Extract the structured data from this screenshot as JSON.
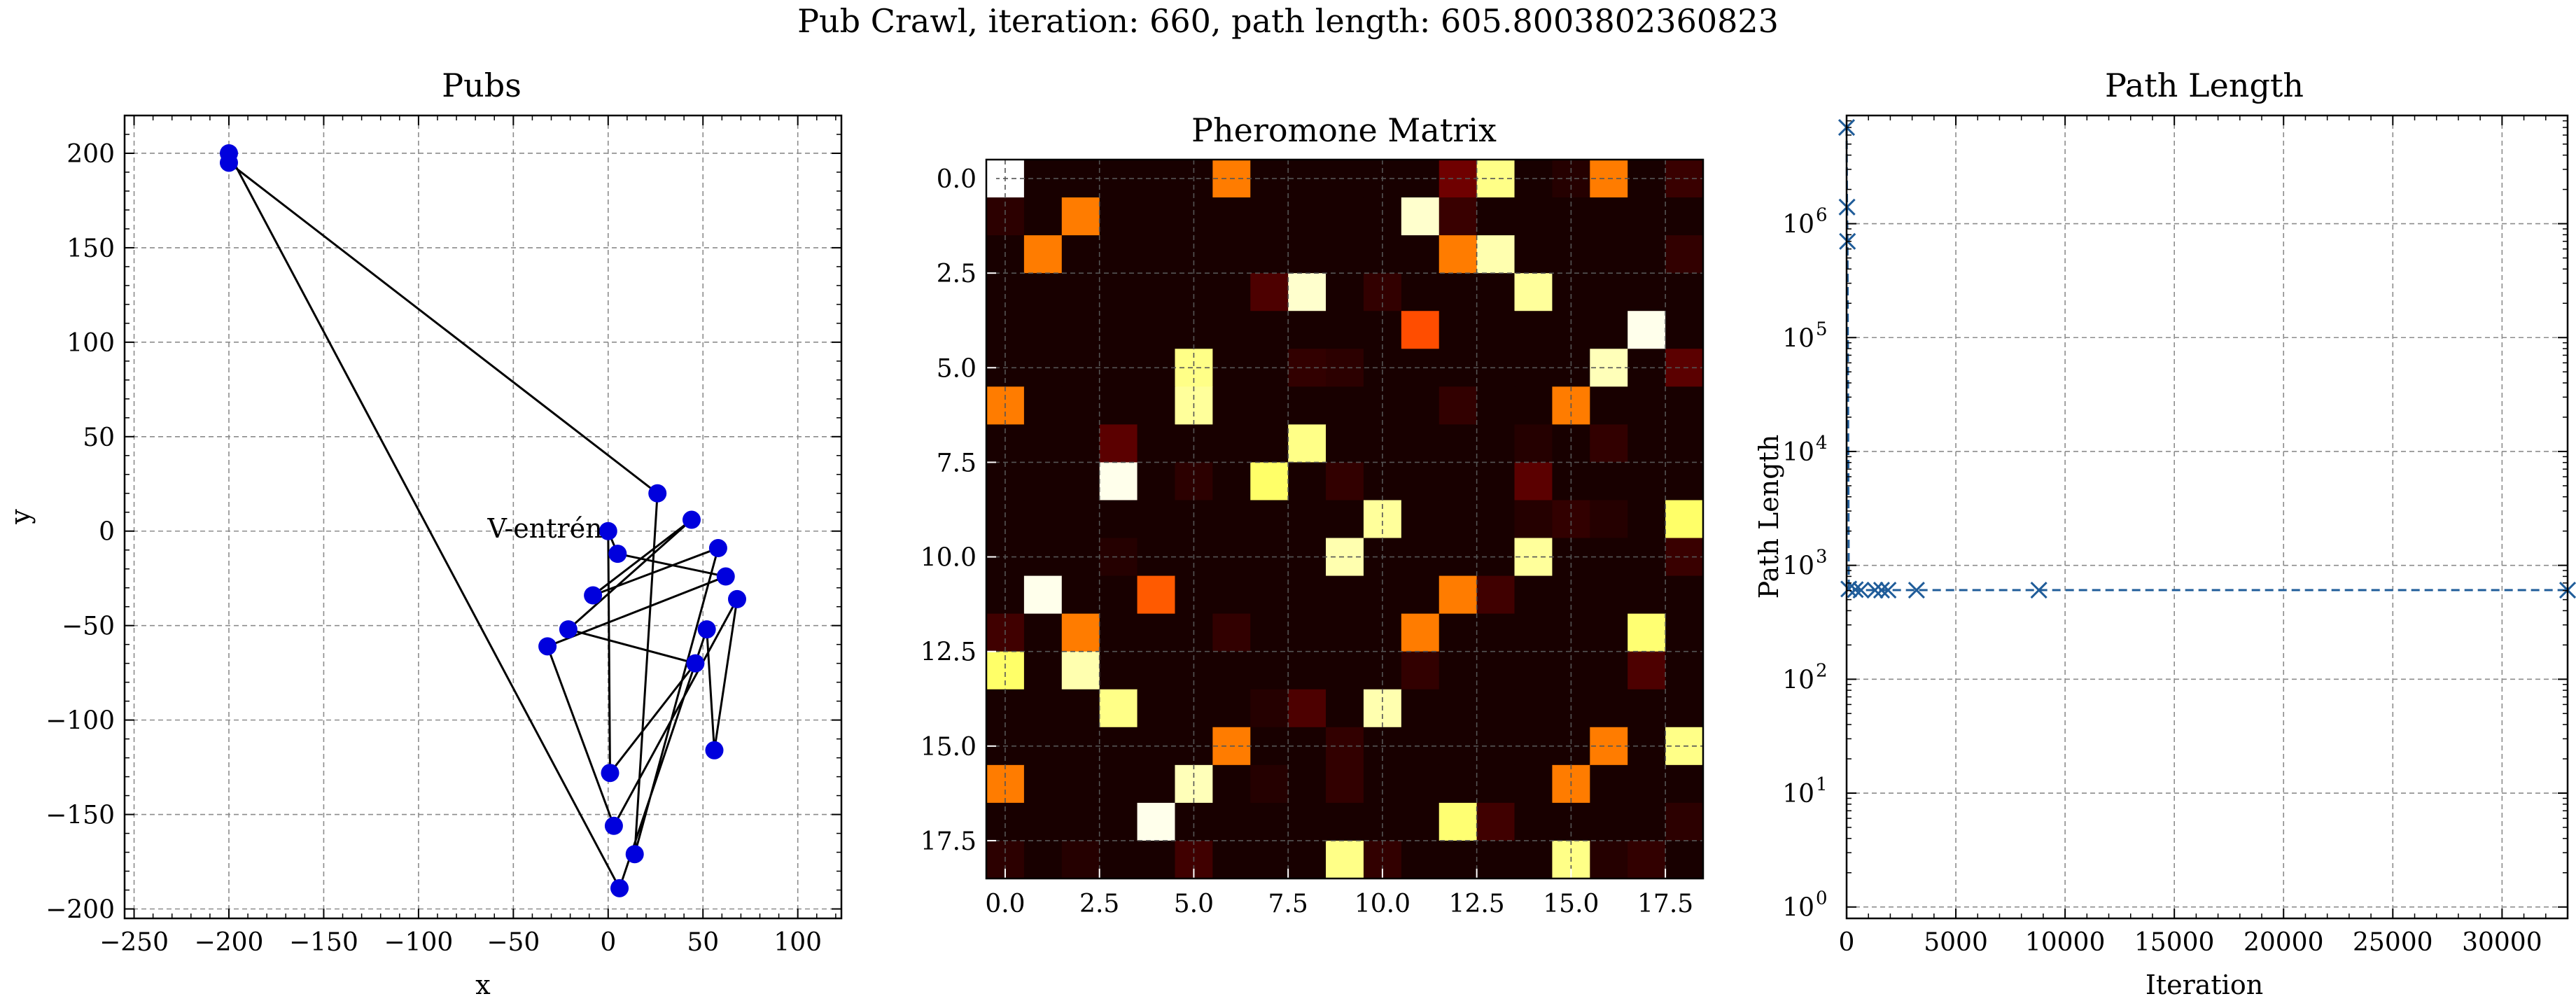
{
  "figure": {
    "suptitle": "Pub Crawl, iteration: 660, path length: 605.8003802360823"
  },
  "chart_data": [
    {
      "type": "scatter",
      "title": "Pubs",
      "xlabel": "x",
      "ylabel": "y",
      "xlim": [
        -255,
        123
      ],
      "ylim": [
        -205,
        220
      ],
      "xticks": [
        -250,
        -200,
        -150,
        -100,
        -50,
        0,
        50,
        100
      ],
      "yticks": [
        200,
        150,
        100,
        50,
        0,
        -50,
        -100,
        -150,
        -200
      ],
      "xtick_labels": [
        "−250",
        "−200",
        "−150",
        "−100",
        "−50",
        "0",
        "50",
        "100"
      ],
      "ytick_labels": [
        "200",
        "150",
        "100",
        "50",
        "0",
        "−50",
        "−100",
        "−150",
        "−200"
      ],
      "grid": true,
      "point_color": "#0000dd",
      "points": [
        {
          "x": -200,
          "y": 200
        },
        {
          "x": -200,
          "y": 195
        },
        {
          "x": 26,
          "y": 20
        },
        {
          "x": 44,
          "y": 6
        },
        {
          "x": 0,
          "y": 0
        },
        {
          "x": 5,
          "y": -12
        },
        {
          "x": 58,
          "y": -9
        },
        {
          "x": 62,
          "y": -24
        },
        {
          "x": 68,
          "y": -36
        },
        {
          "x": -8,
          "y": -34
        },
        {
          "x": -21,
          "y": -52
        },
        {
          "x": -32,
          "y": -61
        },
        {
          "x": 52,
          "y": -52
        },
        {
          "x": 46,
          "y": -70
        },
        {
          "x": 56,
          "y": -116
        },
        {
          "x": 1,
          "y": -128
        },
        {
          "x": 3,
          "y": -156
        },
        {
          "x": 14,
          "y": -171
        },
        {
          "x": 6,
          "y": -189
        }
      ],
      "path": [
        1,
        2,
        17,
        6,
        9,
        3,
        10,
        13,
        15,
        4,
        5,
        7,
        11,
        16,
        8,
        14,
        12,
        18,
        0
      ],
      "annotation": {
        "text": "V-entrén",
        "x": -3,
        "y": 1
      }
    },
    {
      "type": "heatmap",
      "title": "Pheromone Matrix",
      "xticks": [
        0,
        2.5,
        5,
        7.5,
        10,
        12.5,
        15,
        17.5
      ],
      "yticks": [
        0,
        2.5,
        5,
        7.5,
        10,
        12.5,
        15,
        17.5
      ],
      "xtick_labels": [
        "0.0",
        "2.5",
        "5.0",
        "7.5",
        "10.0",
        "12.5",
        "15.0",
        "17.5"
      ],
      "ytick_labels": [
        "0.0",
        "2.5",
        "5.0",
        "7.5",
        "10.0",
        "12.5",
        "15.0",
        "17.5"
      ],
      "size": 19,
      "colormap": "hot",
      "matrix": [
        [
          1.0,
          0.02,
          0.02,
          0.02,
          0.02,
          0.02,
          0.55,
          0.02,
          0.02,
          0.02,
          0.02,
          0.02,
          0.15,
          0.88,
          0.02,
          0.04,
          0.55,
          0.02,
          0.07
        ],
        [
          0.05,
          0.02,
          0.55,
          0.02,
          0.02,
          0.02,
          0.02,
          0.02,
          0.02,
          0.02,
          0.02,
          0.95,
          0.07,
          0.02,
          0.02,
          0.02,
          0.02,
          0.02,
          0.02
        ],
        [
          0.02,
          0.55,
          0.02,
          0.02,
          0.02,
          0.02,
          0.02,
          0.02,
          0.02,
          0.02,
          0.02,
          0.02,
          0.55,
          0.92,
          0.02,
          0.02,
          0.02,
          0.02,
          0.06
        ],
        [
          0.02,
          0.02,
          0.02,
          0.02,
          0.02,
          0.02,
          0.02,
          0.1,
          0.95,
          0.02,
          0.06,
          0.02,
          0.02,
          0.02,
          0.9,
          0.02,
          0.02,
          0.02,
          0.02
        ],
        [
          0.02,
          0.02,
          0.02,
          0.02,
          0.02,
          0.02,
          0.02,
          0.02,
          0.02,
          0.02,
          0.02,
          0.48,
          0.02,
          0.02,
          0.02,
          0.02,
          0.02,
          0.98,
          0.02
        ],
        [
          0.02,
          0.02,
          0.02,
          0.02,
          0.02,
          0.88,
          0.02,
          0.02,
          0.06,
          0.05,
          0.02,
          0.02,
          0.02,
          0.02,
          0.02,
          0.02,
          0.93,
          0.02,
          0.12
        ],
        [
          0.55,
          0.02,
          0.02,
          0.02,
          0.02,
          0.9,
          0.02,
          0.02,
          0.02,
          0.02,
          0.02,
          0.02,
          0.06,
          0.02,
          0.02,
          0.55,
          0.02,
          0.02,
          0.02
        ],
        [
          0.02,
          0.02,
          0.02,
          0.12,
          0.02,
          0.02,
          0.02,
          0.02,
          0.88,
          0.02,
          0.02,
          0.02,
          0.02,
          0.02,
          0.04,
          0.02,
          0.06,
          0.02,
          0.02
        ],
        [
          0.02,
          0.02,
          0.02,
          0.98,
          0.02,
          0.05,
          0.02,
          0.85,
          0.02,
          0.06,
          0.02,
          0.02,
          0.02,
          0.02,
          0.12,
          0.02,
          0.02,
          0.02,
          0.02
        ],
        [
          0.02,
          0.02,
          0.02,
          0.02,
          0.02,
          0.02,
          0.02,
          0.02,
          0.02,
          0.02,
          0.9,
          0.02,
          0.02,
          0.02,
          0.04,
          0.06,
          0.04,
          0.02,
          0.85
        ],
        [
          0.02,
          0.02,
          0.02,
          0.04,
          0.02,
          0.02,
          0.02,
          0.02,
          0.02,
          0.92,
          0.02,
          0.02,
          0.02,
          0.02,
          0.9,
          0.02,
          0.02,
          0.02,
          0.07
        ],
        [
          0.02,
          0.98,
          0.02,
          0.02,
          0.5,
          0.02,
          0.02,
          0.02,
          0.02,
          0.02,
          0.02,
          0.02,
          0.55,
          0.08,
          0.02,
          0.02,
          0.02,
          0.02,
          0.02
        ],
        [
          0.08,
          0.02,
          0.55,
          0.02,
          0.02,
          0.02,
          0.06,
          0.02,
          0.02,
          0.02,
          0.02,
          0.55,
          0.02,
          0.02,
          0.02,
          0.02,
          0.02,
          0.86,
          0.02
        ],
        [
          0.85,
          0.02,
          0.92,
          0.02,
          0.02,
          0.02,
          0.02,
          0.02,
          0.02,
          0.02,
          0.02,
          0.06,
          0.02,
          0.02,
          0.02,
          0.02,
          0.02,
          0.1,
          0.02
        ],
        [
          0.02,
          0.02,
          0.02,
          0.88,
          0.02,
          0.02,
          0.02,
          0.04,
          0.1,
          0.02,
          0.92,
          0.02,
          0.02,
          0.02,
          0.02,
          0.02,
          0.02,
          0.02,
          0.02
        ],
        [
          0.02,
          0.02,
          0.02,
          0.02,
          0.02,
          0.02,
          0.55,
          0.02,
          0.02,
          0.06,
          0.02,
          0.02,
          0.02,
          0.02,
          0.02,
          0.02,
          0.55,
          0.02,
          0.88
        ],
        [
          0.55,
          0.02,
          0.02,
          0.02,
          0.02,
          0.93,
          0.02,
          0.04,
          0.02,
          0.06,
          0.02,
          0.02,
          0.02,
          0.02,
          0.02,
          0.55,
          0.02,
          0.02,
          0.02
        ],
        [
          0.02,
          0.02,
          0.02,
          0.02,
          0.98,
          0.02,
          0.02,
          0.02,
          0.02,
          0.02,
          0.02,
          0.02,
          0.86,
          0.08,
          0.02,
          0.02,
          0.02,
          0.02,
          0.05
        ],
        [
          0.05,
          0.02,
          0.04,
          0.02,
          0.02,
          0.08,
          0.02,
          0.02,
          0.02,
          0.88,
          0.06,
          0.02,
          0.02,
          0.02,
          0.02,
          0.88,
          0.04,
          0.06,
          0.02
        ]
      ]
    },
    {
      "type": "line",
      "title": "Path Length",
      "xlabel": "Iteration",
      "ylabel": "Path Length",
      "yscale": "log",
      "xlim": [
        0,
        33000
      ],
      "ylim_exp": [
        -0.1,
        6.95
      ],
      "xticks": [
        0,
        5000,
        10000,
        15000,
        20000,
        25000,
        30000
      ],
      "xtick_labels": [
        "0",
        "5000",
        "10000",
        "15000",
        "20000",
        "25000",
        "30000"
      ],
      "ytick_exponents": [
        0,
        1,
        2,
        3,
        4,
        5,
        6
      ],
      "grid": true,
      "line_color": "#1f5c99",
      "points": [
        {
          "x": 0,
          "y": 7000000
        },
        {
          "x": 20,
          "y": 1400000
        },
        {
          "x": 40,
          "y": 700000
        },
        {
          "x": 100,
          "y": 620
        },
        {
          "x": 400,
          "y": 612
        },
        {
          "x": 660,
          "y": 606
        },
        {
          "x": 1300,
          "y": 606
        },
        {
          "x": 1600,
          "y": 606
        },
        {
          "x": 1900,
          "y": 606
        },
        {
          "x": 3200,
          "y": 606
        },
        {
          "x": 8800,
          "y": 606
        },
        {
          "x": 33000,
          "y": 606
        }
      ]
    }
  ]
}
